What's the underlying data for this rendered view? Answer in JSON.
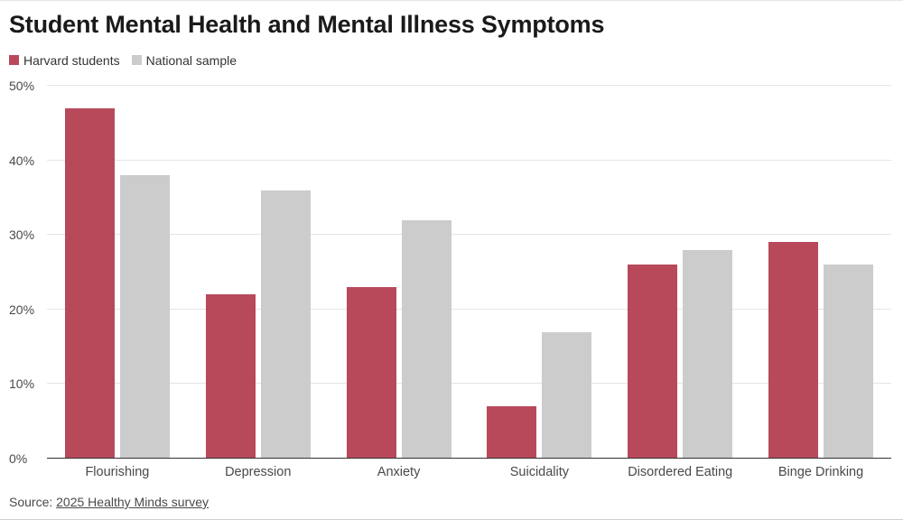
{
  "title": "Student Mental Health and Mental Illness Symptoms",
  "legend": [
    {
      "label": "Harvard students",
      "color": "#b8495b"
    },
    {
      "label": "National sample",
      "color": "#cccccc"
    }
  ],
  "source": {
    "prefix": "Source:",
    "link": "2025 Healthy Minds survey"
  },
  "colors": {
    "harvard": "#b8495b",
    "national": "#cccccc",
    "gridline": "#e5e5e5",
    "baseline": "#333333",
    "axis_text": "#494949"
  },
  "chart_data": {
    "type": "bar",
    "title": "Student Mental Health and Mental Illness Symptoms",
    "categories": [
      "Flourishing",
      "Depression",
      "Anxiety",
      "Suicidality",
      "Disordered Eating",
      "Binge Drinking"
    ],
    "series": [
      {
        "name": "Harvard students",
        "color": "#b8495b",
        "values": [
          47,
          22,
          23,
          7,
          26,
          29
        ]
      },
      {
        "name": "National sample",
        "color": "#cccccc",
        "values": [
          38,
          36,
          32,
          17,
          28,
          26
        ]
      }
    ],
    "xlabel": "",
    "ylabel": "",
    "ylim": [
      0,
      50
    ],
    "ytick_step": 10,
    "ytick_suffix": "%",
    "grid": true,
    "legend_position": "top-left"
  }
}
